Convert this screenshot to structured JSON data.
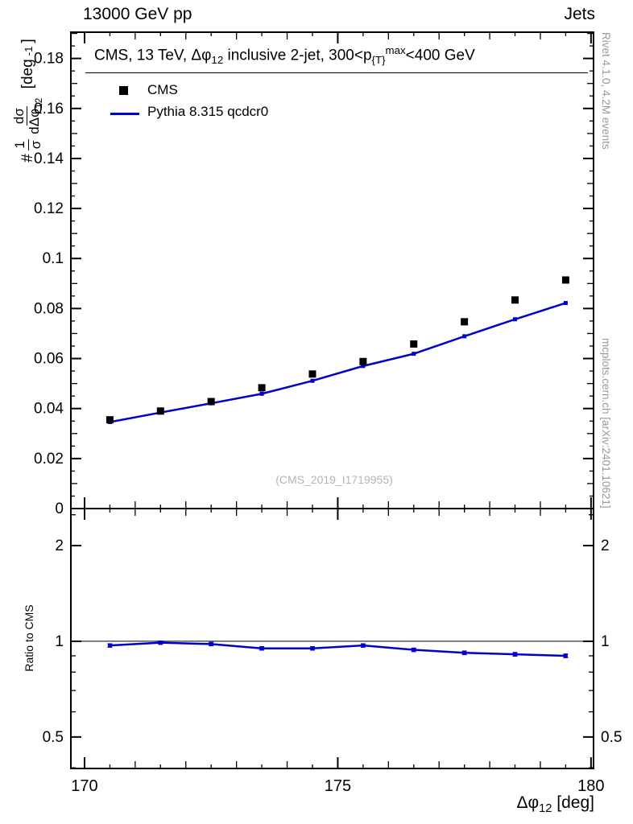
{
  "header": {
    "left": "13000 GeV pp",
    "right": "Jets"
  },
  "title": {
    "segments": [
      {
        "t": "CMS, 13 TeV, "
      },
      {
        "t": "Δφ"
      },
      {
        "t": "12",
        "s": "sub"
      },
      {
        "t": " inclusive 2-jet, 300<p"
      },
      {
        "t": "{T}",
        "s": "sub"
      },
      {
        "t": "max",
        "s": "sup"
      },
      {
        "t": "<400 GeV"
      }
    ]
  },
  "legend": {
    "entries": [
      {
        "label": "CMS",
        "marker": "square",
        "color": "#000000"
      },
      {
        "label": "Pythia 8.315 qcdcr0",
        "marker": "line",
        "color": "#0000cc"
      }
    ]
  },
  "watermark": "(CMS_2019_I1719955)",
  "annotations": {
    "right_top": "Rivet 4.1.0,  4.2M events",
    "right_bottom": "mcplots.cern.ch [arXiv:2401.10621]"
  },
  "axes": {
    "ratio_label": "Ratio to CMS",
    "x_label_segments": [
      {
        "t": "Δφ"
      },
      {
        "t": "12",
        "s": "sub"
      },
      {
        "t": " [deg]"
      }
    ],
    "y_label_segments": [
      {
        "t": "#"
      },
      {
        "frac": {
          "num": [
            {
              "t": "1"
            }
          ],
          "den": [
            {
              "t": "σ"
            }
          ]
        }
      },
      {
        "frac": {
          "num": [
            {
              "t": "dσ"
            }
          ],
          "den": [
            {
              "t": "dΔφ"
            },
            {
              "t": "12",
              "s": "sub"
            }
          ]
        }
      },
      {
        "t": " [deg"
      },
      {
        "t": "-1",
        "s": "sup"
      },
      {
        "t": "]"
      }
    ]
  },
  "chart_data": {
    "type": "line",
    "title": "CMS, 13 TeV, Δφ_12 inclusive 2-jet, 300<p_{T}^max<400 GeV",
    "xlabel": "Δφ_12 [deg]",
    "ylabel": "1/σ dσ/dΔφ_12 [deg^-1]",
    "ratio_ylabel": "Ratio to CMS",
    "legend_position": "top-left",
    "grid": false,
    "x": [
      170.5,
      171.5,
      172.5,
      173.5,
      174.5,
      175.5,
      176.5,
      177.5,
      178.5,
      179.5
    ],
    "x_range": [
      169.73,
      180.05
    ],
    "x_major_ticks": [
      170,
      175,
      180
    ],
    "x_major_labels": [
      "170",
      "175",
      "180"
    ],
    "x_minor_step": 0.5,
    "top_panel": {
      "yscale": "linear",
      "ylim": [
        0,
        0.1905
      ],
      "y_major_ticks": [
        0,
        0.02,
        0.04,
        0.06,
        0.08,
        0.1,
        0.12,
        0.14,
        0.16,
        0.18
      ],
      "y_tick_labels": [
        "0",
        "0.02",
        "0.04",
        "0.06",
        "0.08",
        "0.1",
        "0.12",
        "0.14",
        "0.16",
        "0.18"
      ],
      "y_minor_step": 0.005,
      "series": [
        {
          "name": "CMS",
          "type": "points",
          "marker": "square",
          "color": "#000000",
          "values": [
            0.0355,
            0.039,
            0.0428,
            0.0483,
            0.0538,
            0.0588,
            0.0658,
            0.0747,
            0.0834,
            0.0914
          ],
          "yerr": [
            0.001,
            0.001,
            0.001,
            0.001,
            0.001,
            0.001,
            0.001,
            0.001,
            0.0012,
            0.0012
          ]
        },
        {
          "name": "Pythia 8.315 qcdcr0",
          "type": "line+markers",
          "marker": "square-small",
          "color": "#0000cc",
          "values": [
            0.0346,
            0.0384,
            0.0421,
            0.0459,
            0.0511,
            0.057,
            0.0619,
            0.0689,
            0.0757,
            0.0822
          ]
        }
      ]
    },
    "ratio_panel": {
      "yscale": "log",
      "ylim": [
        0.398,
        2.615
      ],
      "y_major_ticks": [
        0.5,
        1,
        2
      ],
      "y_tick_labels": [
        "0.5",
        "1",
        "2"
      ],
      "y_minor_ticks": [
        0.4,
        0.6,
        0.7,
        0.8,
        0.9,
        2.5
      ],
      "baseline": 1,
      "series": [
        {
          "name": "Pythia 8.315 qcdcr0 / CMS",
          "type": "line+markers",
          "color": "#0000cc",
          "values": [
            0.97,
            0.99,
            0.98,
            0.95,
            0.95,
            0.97,
            0.94,
            0.92,
            0.91,
            0.9
          ],
          "yerr": [
            0.012,
            0.012,
            0.012,
            0.012,
            0.012,
            0.012,
            0.012,
            0.012,
            0.012,
            0.012
          ]
        }
      ]
    }
  }
}
